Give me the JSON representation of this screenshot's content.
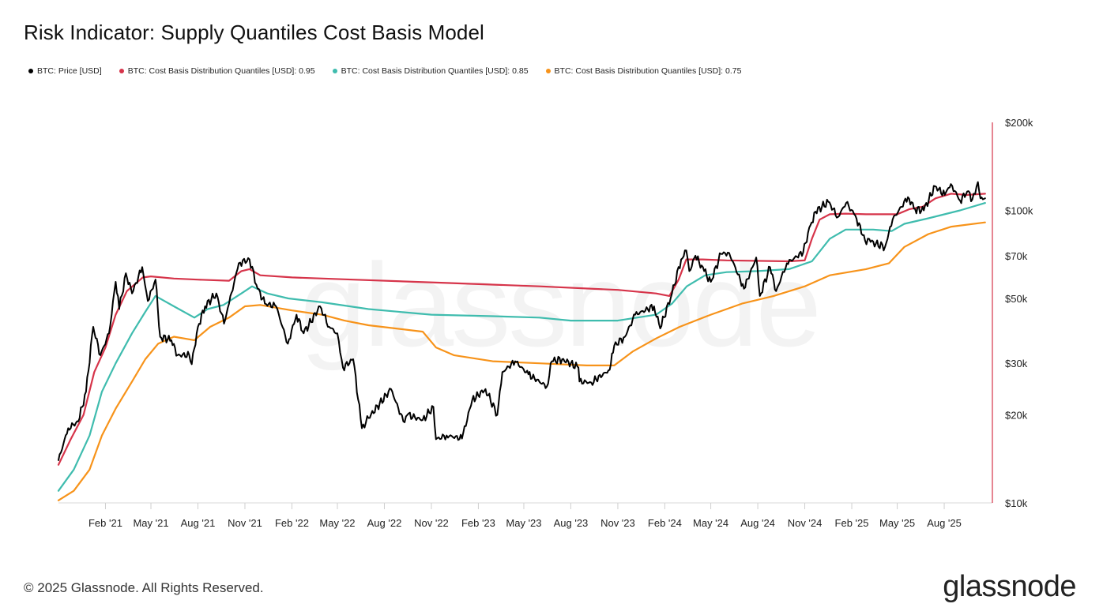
{
  "title": "Risk Indicator: Supply Quantiles Cost Basis Model",
  "footer": "© 2025 Glassnode. All Rights Reserved.",
  "brand": "glassnode",
  "watermark": "glassnode",
  "legend": [
    {
      "label": "BTC: Price [USD]",
      "color": "#000000"
    },
    {
      "label": "BTC: Cost Basis Distribution Quantiles [USD]: 0.95",
      "color": "#d6344a"
    },
    {
      "label": "BTC: Cost Basis Distribution Quantiles [USD]: 0.85",
      "color": "#3fbcae"
    },
    {
      "label": "BTC: Cost Basis Distribution Quantiles [USD]: 0.75",
      "color": "#f7931a"
    }
  ],
  "chart_data": {
    "type": "line",
    "title": "Risk Indicator: Supply Quantiles Cost Basis Model",
    "y_scale": "log",
    "ylim": [
      10000,
      200000
    ],
    "yticks": [
      {
        "value": 10000,
        "label": "$10k"
      },
      {
        "value": 20000,
        "label": "$20k"
      },
      {
        "value": 30000,
        "label": "$30k"
      },
      {
        "value": 50000,
        "label": "$50k"
      },
      {
        "value": 70000,
        "label": "$70k"
      },
      {
        "value": 100000,
        "label": "$100k"
      },
      {
        "value": 200000,
        "label": "$200k"
      }
    ],
    "xlim": [
      "2020-11-01",
      "2025-10-25"
    ],
    "xticks": [
      {
        "value": "2021-02-01",
        "label": "Feb '21"
      },
      {
        "value": "2021-05-01",
        "label": "May '21"
      },
      {
        "value": "2021-08-01",
        "label": "Aug '21"
      },
      {
        "value": "2021-11-01",
        "label": "Nov '21"
      },
      {
        "value": "2022-02-01",
        "label": "Feb '22"
      },
      {
        "value": "2022-05-01",
        "label": "May '22"
      },
      {
        "value": "2022-08-01",
        "label": "Aug '22"
      },
      {
        "value": "2022-11-01",
        "label": "Nov '22"
      },
      {
        "value": "2023-02-01",
        "label": "Feb '23"
      },
      {
        "value": "2023-05-01",
        "label": "May '23"
      },
      {
        "value": "2023-08-01",
        "label": "Aug '23"
      },
      {
        "value": "2023-11-01",
        "label": "Nov '23"
      },
      {
        "value": "2024-02-01",
        "label": "Feb '24"
      },
      {
        "value": "2024-05-01",
        "label": "May '24"
      },
      {
        "value": "2024-08-01",
        "label": "Aug '24"
      },
      {
        "value": "2024-11-01",
        "label": "Nov '24"
      },
      {
        "value": "2025-02-01",
        "label": "Feb '25"
      },
      {
        "value": "2025-05-01",
        "label": "May '25"
      },
      {
        "value": "2025-08-01",
        "label": "Aug '25"
      }
    ],
    "grid": false,
    "legend_position": "top-left",
    "series": [
      {
        "name": "BTC: Price [USD]",
        "color": "#000000",
        "points": [
          [
            "2020-11-01",
            14000
          ],
          [
            "2020-11-20",
            18000
          ],
          [
            "2020-12-10",
            19000
          ],
          [
            "2020-12-25",
            24000
          ],
          [
            "2021-01-08",
            40000
          ],
          [
            "2021-01-22",
            32000
          ],
          [
            "2021-02-08",
            38000
          ],
          [
            "2021-02-21",
            57000
          ],
          [
            "2021-02-28",
            46000
          ],
          [
            "2021-03-13",
            61000
          ],
          [
            "2021-03-25",
            52000
          ],
          [
            "2021-04-14",
            64000
          ],
          [
            "2021-04-25",
            49000
          ],
          [
            "2021-05-10",
            58000
          ],
          [
            "2021-05-19",
            37000
          ],
          [
            "2021-06-10",
            36000
          ],
          [
            "2021-06-22",
            32000
          ],
          [
            "2021-07-15",
            32000
          ],
          [
            "2021-07-20",
            29800
          ],
          [
            "2021-08-01",
            40000
          ],
          [
            "2021-08-15",
            47000
          ],
          [
            "2021-09-06",
            52000
          ],
          [
            "2021-09-21",
            41000
          ],
          [
            "2021-10-01",
            48000
          ],
          [
            "2021-10-20",
            66000
          ],
          [
            "2021-11-10",
            68000
          ],
          [
            "2021-11-26",
            54000
          ],
          [
            "2021-12-10",
            48000
          ],
          [
            "2022-01-01",
            47000
          ],
          [
            "2022-01-24",
            35000
          ],
          [
            "2022-02-10",
            44000
          ],
          [
            "2022-02-24",
            38000
          ],
          [
            "2022-03-28",
            47000
          ],
          [
            "2022-04-15",
            40000
          ],
          [
            "2022-05-01",
            38000
          ],
          [
            "2022-05-12",
            29000
          ],
          [
            "2022-06-01",
            31000
          ],
          [
            "2022-06-18",
            18000
          ],
          [
            "2022-07-01",
            19500
          ],
          [
            "2022-08-14",
            24500
          ],
          [
            "2022-09-07",
            19000
          ],
          [
            "2022-09-15",
            20000
          ],
          [
            "2022-10-15",
            19200
          ],
          [
            "2022-11-05",
            21300
          ],
          [
            "2022-11-10",
            16500
          ],
          [
            "2022-12-01",
            17000
          ],
          [
            "2022-12-31",
            16600
          ],
          [
            "2023-01-20",
            22500
          ],
          [
            "2023-02-15",
            24500
          ],
          [
            "2023-03-10",
            20000
          ],
          [
            "2023-03-20",
            28000
          ],
          [
            "2023-04-14",
            30500
          ],
          [
            "2023-05-10",
            27500
          ],
          [
            "2023-06-15",
            25000
          ],
          [
            "2023-06-25",
            30500
          ],
          [
            "2023-07-15",
            31000
          ],
          [
            "2023-08-16",
            29000
          ],
          [
            "2023-08-18",
            26000
          ],
          [
            "2023-09-10",
            25800
          ],
          [
            "2023-10-16",
            28500
          ],
          [
            "2023-10-25",
            34500
          ],
          [
            "2023-11-15",
            37000
          ],
          [
            "2023-12-05",
            44000
          ],
          [
            "2024-01-11",
            47000
          ],
          [
            "2024-01-23",
            39500
          ],
          [
            "2024-02-15",
            52000
          ],
          [
            "2024-03-04",
            68000
          ],
          [
            "2024-03-14",
            73000
          ],
          [
            "2024-03-20",
            62000
          ],
          [
            "2024-04-01",
            70000
          ],
          [
            "2024-04-18",
            62000
          ],
          [
            "2024-05-01",
            57000
          ],
          [
            "2024-05-21",
            71000
          ],
          [
            "2024-06-06",
            71500
          ],
          [
            "2024-07-05",
            54000
          ],
          [
            "2024-07-29",
            69000
          ],
          [
            "2024-08-05",
            51000
          ],
          [
            "2024-08-25",
            64000
          ],
          [
            "2024-09-06",
            53000
          ],
          [
            "2024-09-27",
            66000
          ],
          [
            "2024-10-29",
            72000
          ],
          [
            "2024-11-12",
            89000
          ],
          [
            "2024-11-22",
            99000
          ],
          [
            "2024-12-17",
            107000
          ],
          [
            "2025-01-05",
            95000
          ],
          [
            "2025-01-21",
            106000
          ],
          [
            "2025-02-08",
            96000
          ],
          [
            "2025-02-27",
            79000
          ],
          [
            "2025-03-10",
            78000
          ],
          [
            "2025-04-07",
            75000
          ],
          [
            "2025-04-22",
            93000
          ],
          [
            "2025-05-22",
            111000
          ],
          [
            "2025-06-05",
            101000
          ],
          [
            "2025-06-22",
            100000
          ],
          [
            "2025-07-14",
            121000
          ],
          [
            "2025-08-02",
            113000
          ],
          [
            "2025-08-14",
            123000
          ],
          [
            "2025-09-01",
            108000
          ],
          [
            "2025-09-15",
            116000
          ],
          [
            "2025-09-25",
            109000
          ],
          [
            "2025-10-06",
            125000
          ],
          [
            "2025-10-11",
            110000
          ],
          [
            "2025-10-20",
            110000
          ]
        ]
      },
      {
        "name": "BTC: Cost Basis Distribution Quantiles [USD]: 0.95",
        "color": "#d6344a",
        "points": [
          [
            "2020-11-01",
            13500
          ],
          [
            "2020-11-25",
            16500
          ],
          [
            "2020-12-20",
            20000
          ],
          [
            "2021-01-10",
            28000
          ],
          [
            "2021-02-01",
            34000
          ],
          [
            "2021-02-21",
            44000
          ],
          [
            "2021-03-15",
            53000
          ],
          [
            "2021-04-15",
            59000
          ],
          [
            "2021-05-01",
            59500
          ],
          [
            "2021-06-15",
            58500
          ],
          [
            "2021-08-01",
            58000
          ],
          [
            "2021-10-01",
            57500
          ],
          [
            "2021-10-25",
            62000
          ],
          [
            "2021-11-10",
            63000
          ],
          [
            "2021-12-01",
            60000
          ],
          [
            "2022-02-01",
            59000
          ],
          [
            "2022-06-01",
            58000
          ],
          [
            "2022-12-01",
            56500
          ],
          [
            "2023-06-01",
            55000
          ],
          [
            "2023-11-01",
            53500
          ],
          [
            "2024-01-15",
            52000
          ],
          [
            "2024-02-10",
            51000
          ],
          [
            "2024-02-28",
            58000
          ],
          [
            "2024-03-14",
            68000
          ],
          [
            "2024-04-15",
            68000
          ],
          [
            "2024-06-01",
            67500
          ],
          [
            "2024-10-01",
            67000
          ],
          [
            "2024-11-01",
            67500
          ],
          [
            "2024-11-15",
            80000
          ],
          [
            "2024-11-30",
            93000
          ],
          [
            "2024-12-20",
            97000
          ],
          [
            "2025-01-20",
            97500
          ],
          [
            "2025-03-01",
            97000
          ],
          [
            "2025-05-01",
            97000
          ],
          [
            "2025-05-25",
            101000
          ],
          [
            "2025-06-20",
            103000
          ],
          [
            "2025-07-15",
            110000
          ],
          [
            "2025-08-14",
            114000
          ],
          [
            "2025-09-15",
            113000
          ],
          [
            "2025-10-20",
            114000
          ]
        ]
      },
      {
        "name": "BTC: Cost Basis Distribution Quantiles [USD]: 0.85",
        "color": "#3fbcae",
        "points": [
          [
            "2020-11-01",
            11000
          ],
          [
            "2020-12-01",
            13000
          ],
          [
            "2021-01-01",
            17000
          ],
          [
            "2021-01-25",
            24000
          ],
          [
            "2021-02-21",
            30000
          ],
          [
            "2021-03-25",
            38000
          ],
          [
            "2021-04-20",
            45000
          ],
          [
            "2021-05-10",
            51000
          ],
          [
            "2021-06-15",
            47000
          ],
          [
            "2021-07-25",
            43000
          ],
          [
            "2021-08-20",
            46000
          ],
          [
            "2021-09-20",
            47500
          ],
          [
            "2021-10-25",
            52000
          ],
          [
            "2021-11-15",
            55000
          ],
          [
            "2021-12-15",
            52000
          ],
          [
            "2022-01-25",
            50000
          ],
          [
            "2022-04-01",
            48500
          ],
          [
            "2022-07-01",
            46000
          ],
          [
            "2022-11-01",
            44000
          ],
          [
            "2023-03-01",
            43500
          ],
          [
            "2023-06-01",
            43000
          ],
          [
            "2023-08-01",
            42000
          ],
          [
            "2023-11-01",
            42000
          ],
          [
            "2024-01-15",
            44000
          ],
          [
            "2024-02-15",
            48000
          ],
          [
            "2024-03-15",
            55000
          ],
          [
            "2024-04-20",
            60000
          ],
          [
            "2024-06-01",
            61500
          ],
          [
            "2024-08-01",
            62000
          ],
          [
            "2024-10-01",
            63000
          ],
          [
            "2024-11-15",
            67000
          ],
          [
            "2024-12-20",
            80000
          ],
          [
            "2025-01-20",
            86000
          ],
          [
            "2025-03-15",
            86000
          ],
          [
            "2025-04-20",
            85000
          ],
          [
            "2025-05-15",
            90000
          ],
          [
            "2025-07-01",
            94000
          ],
          [
            "2025-09-01",
            100000
          ],
          [
            "2025-10-20",
            106000
          ]
        ]
      },
      {
        "name": "BTC: Cost Basis Distribution Quantiles [USD]: 0.75",
        "color": "#f7931a",
        "points": [
          [
            "2020-11-01",
            10200
          ],
          [
            "2020-12-01",
            11000
          ],
          [
            "2021-01-01",
            13000
          ],
          [
            "2021-01-25",
            17000
          ],
          [
            "2021-02-21",
            21000
          ],
          [
            "2021-03-25",
            26000
          ],
          [
            "2021-04-20",
            31000
          ],
          [
            "2021-05-15",
            35000
          ],
          [
            "2021-06-15",
            37000
          ],
          [
            "2021-07-25",
            36000
          ],
          [
            "2021-08-25",
            40000
          ],
          [
            "2021-10-01",
            43000
          ],
          [
            "2021-11-01",
            47000
          ],
          [
            "2021-12-01",
            47500
          ],
          [
            "2022-02-01",
            45500
          ],
          [
            "2022-04-01",
            44000
          ],
          [
            "2022-05-15",
            42000
          ],
          [
            "2022-07-01",
            40500
          ],
          [
            "2022-10-15",
            38500
          ],
          [
            "2022-11-10",
            34000
          ],
          [
            "2022-12-15",
            32000
          ],
          [
            "2023-03-01",
            30500
          ],
          [
            "2023-06-01",
            30000
          ],
          [
            "2023-09-01",
            29500
          ],
          [
            "2023-10-25",
            29500
          ],
          [
            "2023-12-01",
            33000
          ],
          [
            "2024-01-15",
            36500
          ],
          [
            "2024-03-01",
            40000
          ],
          [
            "2024-05-01",
            44000
          ],
          [
            "2024-07-01",
            48000
          ],
          [
            "2024-09-01",
            51000
          ],
          [
            "2024-11-01",
            55000
          ],
          [
            "2024-12-20",
            60000
          ],
          [
            "2025-03-01",
            63000
          ],
          [
            "2025-04-15",
            66000
          ],
          [
            "2025-05-15",
            75000
          ],
          [
            "2025-07-01",
            83000
          ],
          [
            "2025-08-15",
            88000
          ],
          [
            "2025-10-20",
            91000
          ]
        ]
      }
    ]
  }
}
